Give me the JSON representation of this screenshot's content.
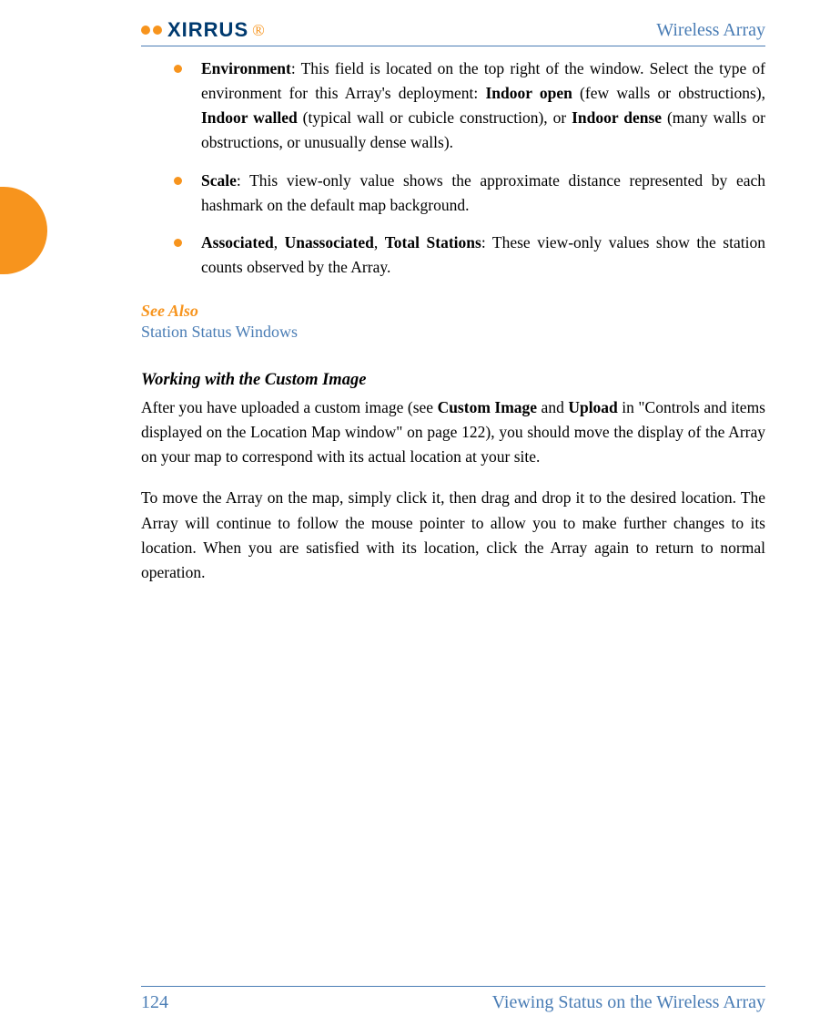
{
  "header": {
    "brand": "XIRRUS",
    "title": "Wireless Array"
  },
  "bullets": [
    {
      "bold1": "Environment",
      "text1": ": This field is located on the top right of the window. Select the type of environment for this Array's deployment: ",
      "bold2": "Indoor open",
      "text2": " (few walls or obstructions), ",
      "bold3": "Indoor walled",
      "text3": " (typical wall or cubicle construction), or ",
      "bold4": "Indoor dense",
      "text4": " (many walls or obstructions, or unusually dense walls)."
    },
    {
      "bold1": "Scale",
      "text1": ": This view-only value shows the approximate distance represented by each hashmark on the default map background."
    },
    {
      "bold1": "Associated",
      "sep1": ", ",
      "bold2": "Unassociated",
      "sep2": ", ",
      "bold3": "Total Stations",
      "text1": ": These view-only values show the station counts observed by the Array."
    }
  ],
  "see_also": {
    "heading": "See Also",
    "link": "Station Status Windows"
  },
  "section": {
    "heading": "Working with the Custom Image",
    "para1_a": "After you have uploaded a custom image (see ",
    "para1_b1": "Custom Image",
    "para1_c": " and ",
    "para1_b2": "Upload",
    "para1_d": " in \"Controls and items displayed on the Location Map window\" on page 122), you should move the display of the Array on your map to correspond with its actual location at your site.",
    "para2": "To move the Array on the map, simply click it, then drag and drop it to the desired location. The Array will continue to follow the mouse pointer to allow you to make further changes to its location. When you are satisfied with its location, click the Array again to return to normal operation."
  },
  "footer": {
    "page": "124",
    "chapter": "Viewing Status on the Wireless Array"
  },
  "colors": {
    "accent_orange": "#f7941d",
    "accent_blue": "#4a7db5",
    "brand_navy": "#003a6f",
    "text": "#000000"
  }
}
